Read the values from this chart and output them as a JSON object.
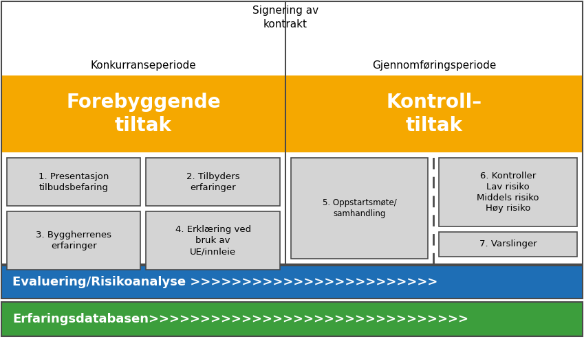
{
  "fig_width": 8.49,
  "fig_height": 4.94,
  "bg_color": "#ffffff",
  "border_color": "#4a4a4a",
  "orange_color": "#f5a800",
  "blue_color": "#1e6eb5",
  "green_color": "#3c9e3c",
  "gray_box_color": "#d4d4d4",
  "top_label_left": "Konkurranseperiode",
  "top_label_right": "Gjennomføringsperiode",
  "center_label_line1": "Signering av",
  "center_label_line2": "kontrakt",
  "orange_left_line1": "Forebyggende",
  "orange_left_line2": "tiltak",
  "orange_right_line1": "Kontroll–",
  "orange_right_line2": "tiltak",
  "box1_text": "1. Presentasjon\ntilbudsbefaring",
  "box2_text": "2. Tilbyders\nerfaringer",
  "box3_text": "3. Byggherrenes\nerfaringer",
  "box4_text": "4. Erklæring ved\nbruk av\nUE/innleie",
  "box5_text": "5. Oppstartsmøte/\nsamhandling",
  "box6_text": "6. Kontroller\nLav risiko\nMiddels risiko\nHøy risiko",
  "box7_text": "7. Varslinger",
  "blue_bar_text": "Evaluering/Risikoanalyse >>>>>>>>>>>>>>>>>>>>>>>>",
  "green_bar_text": "Erfaringsdatabasen>>>>>>>>>>>>>>>>>>>>>>>>>>>>>>>"
}
